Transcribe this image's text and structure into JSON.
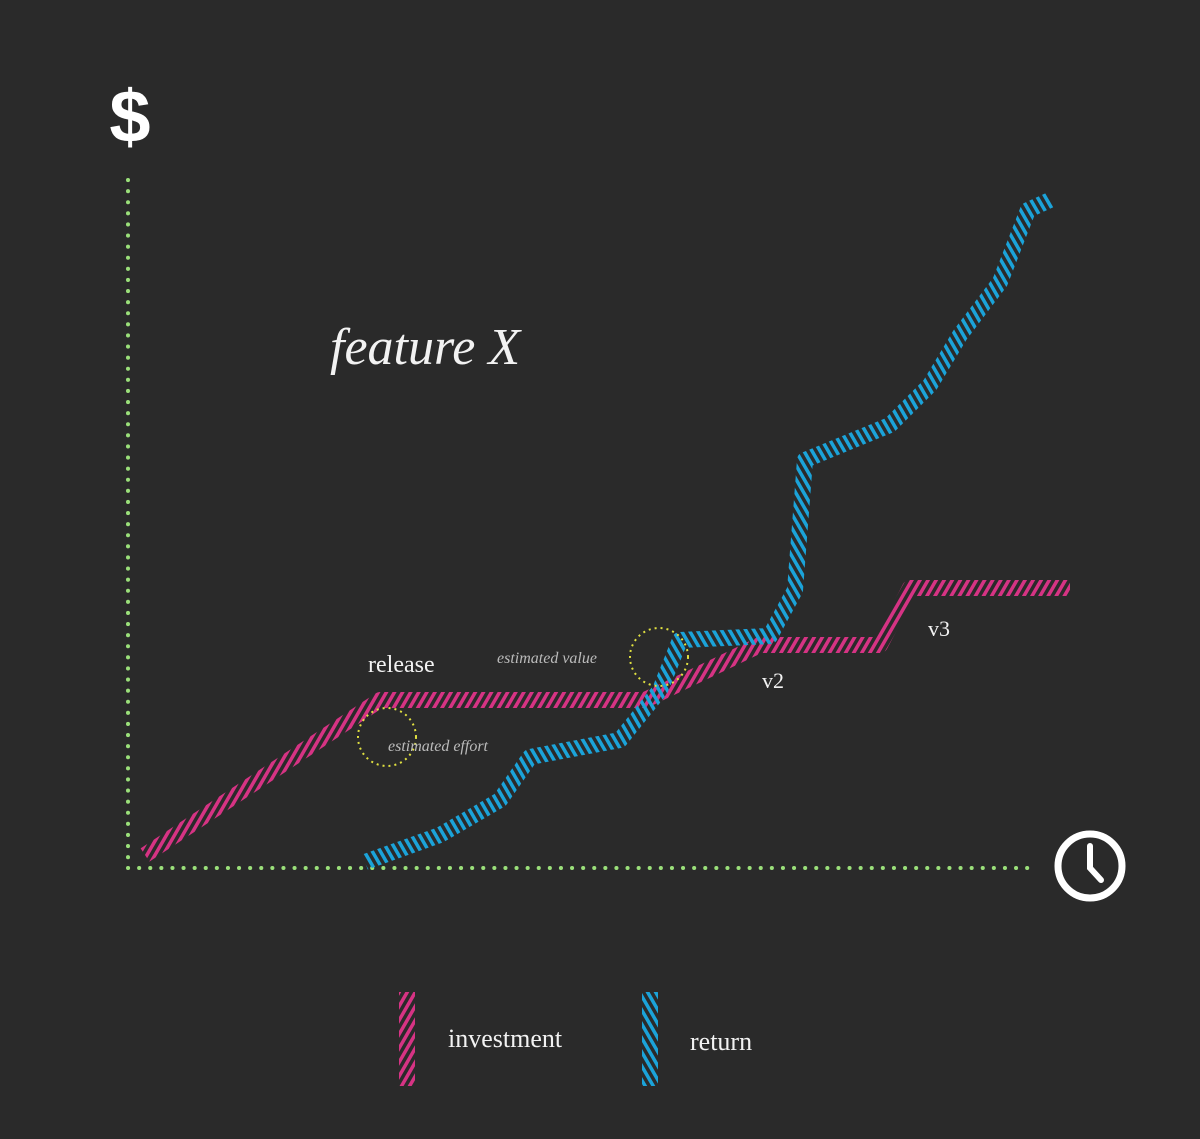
{
  "title": "feature X",
  "y_axis_label": "$",
  "annotations": {
    "release": "release",
    "v2": "v2",
    "v3": "v3",
    "estimated_value": "estimated value",
    "estimated_effort": "estimated effort"
  },
  "legend": [
    "investment",
    "return"
  ]
}
